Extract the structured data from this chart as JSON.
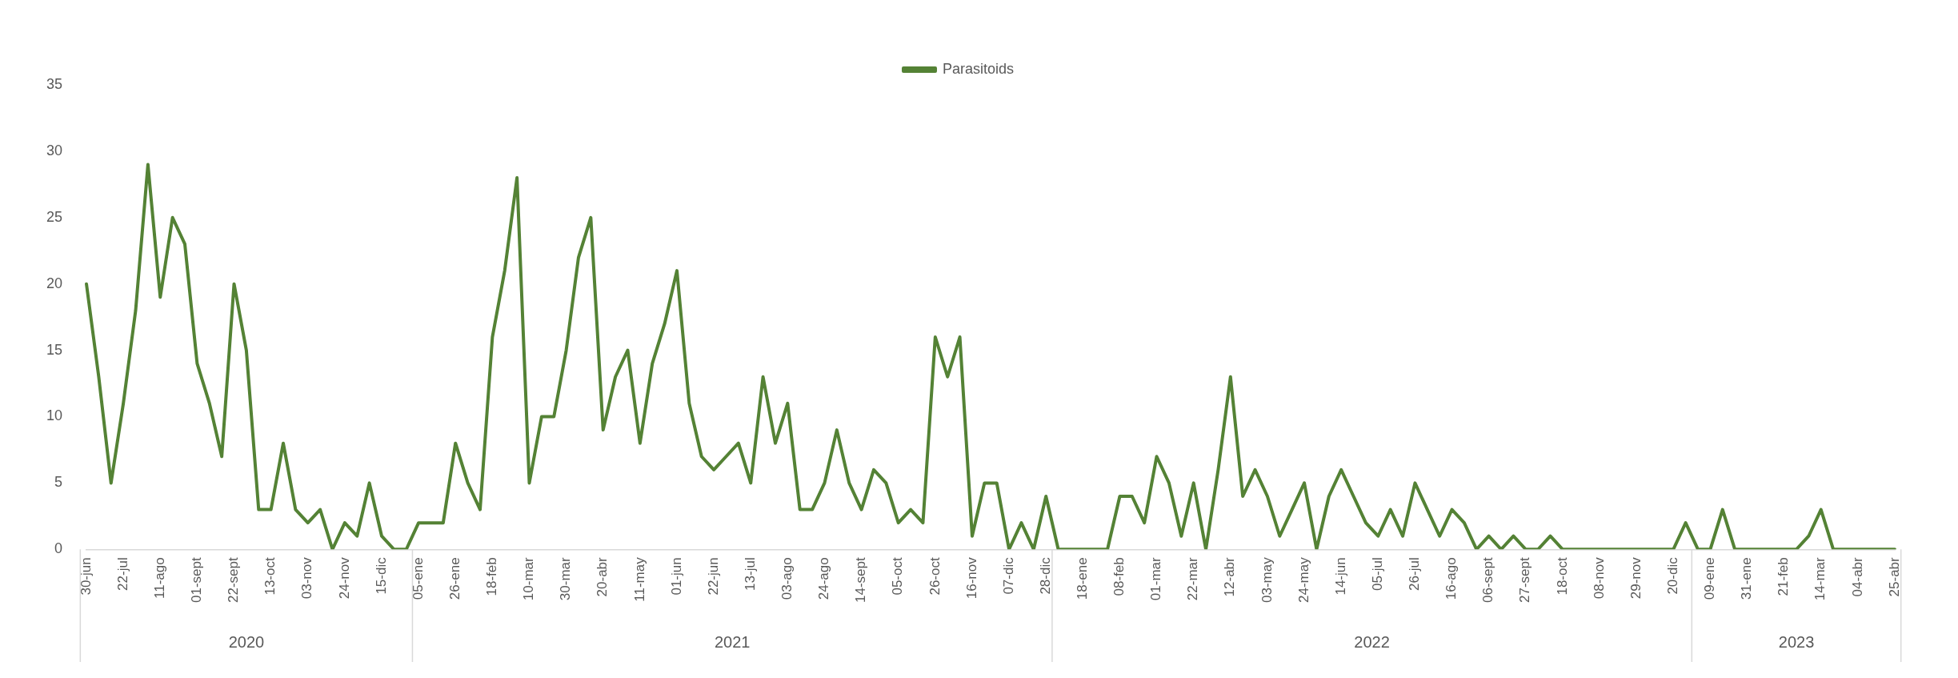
{
  "chart_data": {
    "type": "line",
    "categories": [
      "30-jun",
      null,
      null,
      "22-jul",
      null,
      null,
      "11-ago",
      null,
      null,
      "01-sept",
      null,
      null,
      "22-sept",
      null,
      null,
      "13-oct",
      null,
      null,
      "03-nov",
      null,
      null,
      "24-nov",
      null,
      null,
      "15-dic",
      null,
      null,
      "05-ene",
      null,
      null,
      "26-ene",
      null,
      null,
      "18-feb",
      null,
      null,
      "10-mar",
      null,
      null,
      "30-mar",
      null,
      null,
      "20-abr",
      null,
      null,
      "11-may",
      null,
      null,
      "01-jun",
      null,
      null,
      "22-jun",
      null,
      null,
      "13-jul",
      null,
      null,
      "03-ago",
      null,
      null,
      "24-ago",
      null,
      null,
      "14-sept",
      null,
      null,
      "05-oct",
      null,
      null,
      "26-oct",
      null,
      null,
      "16-nov",
      null,
      null,
      "07-dic",
      null,
      null,
      "28-dic",
      null,
      null,
      "18-ene",
      null,
      null,
      "08-feb",
      null,
      null,
      "01-mar",
      null,
      null,
      "22-mar",
      null,
      null,
      "12-abr",
      null,
      null,
      "03-may",
      null,
      null,
      "24-may",
      null,
      null,
      "14-jun",
      null,
      null,
      "05-jul",
      null,
      null,
      "26-jul",
      null,
      null,
      "16-ago",
      null,
      null,
      "06-sept",
      null,
      null,
      "27-sept",
      null,
      null,
      "18-oct",
      null,
      null,
      "08-nov",
      null,
      null,
      "29-nov",
      null,
      null,
      "20-dic",
      null,
      null,
      "09-ene",
      null,
      null,
      "31-ene",
      null,
      null,
      "21-feb",
      null,
      null,
      "14-mar",
      null,
      null,
      "04-abr",
      null,
      null,
      "25-abr"
    ],
    "series": [
      {
        "name": "Parasitoids",
        "color": "#548235",
        "values": [
          20,
          13,
          5,
          11,
          18,
          29,
          19,
          25,
          23,
          14,
          11,
          7,
          20,
          15,
          3,
          3,
          8,
          3,
          2,
          3,
          0,
          2,
          1,
          5,
          1,
          0,
          0,
          2,
          2,
          2,
          8,
          5,
          3,
          16,
          21,
          28,
          5,
          10,
          10,
          15,
          22,
          25,
          9,
          13,
          15,
          8,
          14,
          17,
          21,
          11,
          7,
          6,
          7,
          8,
          5,
          13,
          8,
          11,
          3,
          3,
          5,
          9,
          5,
          3,
          6,
          5,
          2,
          3,
          2,
          16,
          13,
          16,
          1,
          5,
          5,
          0,
          2,
          0,
          4,
          0,
          0,
          0,
          0,
          0,
          4,
          4,
          2,
          7,
          5,
          1,
          5,
          0,
          6,
          13,
          4,
          6,
          4,
          1,
          3,
          5,
          0,
          4,
          6,
          4,
          2,
          1,
          3,
          1,
          5,
          3,
          1,
          3,
          2,
          0,
          1,
          0,
          1,
          0,
          0,
          1,
          0,
          0,
          0,
          0,
          0,
          0,
          0,
          0,
          0,
          0,
          2,
          0,
          0,
          3,
          0,
          0,
          0,
          0,
          0,
          0,
          1,
          3,
          0,
          0,
          0,
          0,
          0,
          0
        ]
      }
    ],
    "ylim": [
      0,
      35
    ],
    "yticks": [
      0,
      5,
      10,
      15,
      20,
      25,
      30,
      35
    ],
    "grid": false,
    "legend": "top",
    "marker": "none",
    "line_style": "solid",
    "annotations": [
      "2020",
      "2021",
      "2022",
      "2023"
    ]
  }
}
